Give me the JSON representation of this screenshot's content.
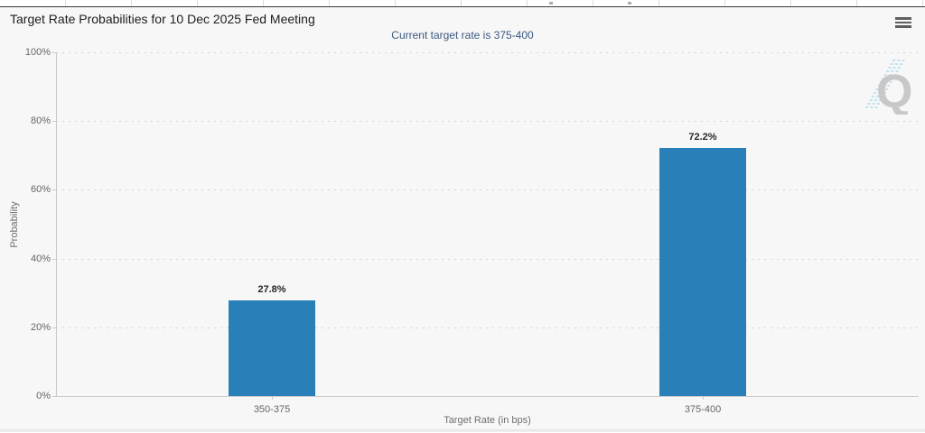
{
  "header": {
    "title": "Target Rate Probabilities for 10 Dec 2025 Fed Meeting",
    "subtitle": "Current target rate is 375-400",
    "menu_icon": "hamburger-icon"
  },
  "watermark": {
    "letter": "Q"
  },
  "chart_data": {
    "type": "bar",
    "title": "Target Rate Probabilities for 10 Dec 2025 Fed Meeting",
    "subtitle": "Current target rate is 375-400",
    "categories": [
      "350-375",
      "375-400"
    ],
    "values": [
      27.8,
      72.2
    ],
    "data_labels": [
      "27.8%",
      "72.2%"
    ],
    "xlabel": "Target Rate (in bps)",
    "ylabel": "Probability",
    "ylim": [
      0,
      100
    ],
    "ytick_values": [
      0,
      20,
      40,
      60,
      80,
      100
    ],
    "ytick_labels": [
      "0%",
      "20%",
      "40%",
      "60%",
      "80%",
      "100%"
    ],
    "grid": "dotted-horizontal",
    "legend": "none"
  },
  "colors": {
    "bar": "#2980b9",
    "subtitle_text": "#3b5a82",
    "watermark_q": "#c8c8c8",
    "watermark_dashes": "#aedcf0",
    "panel_bg": "#f7f7f7"
  }
}
